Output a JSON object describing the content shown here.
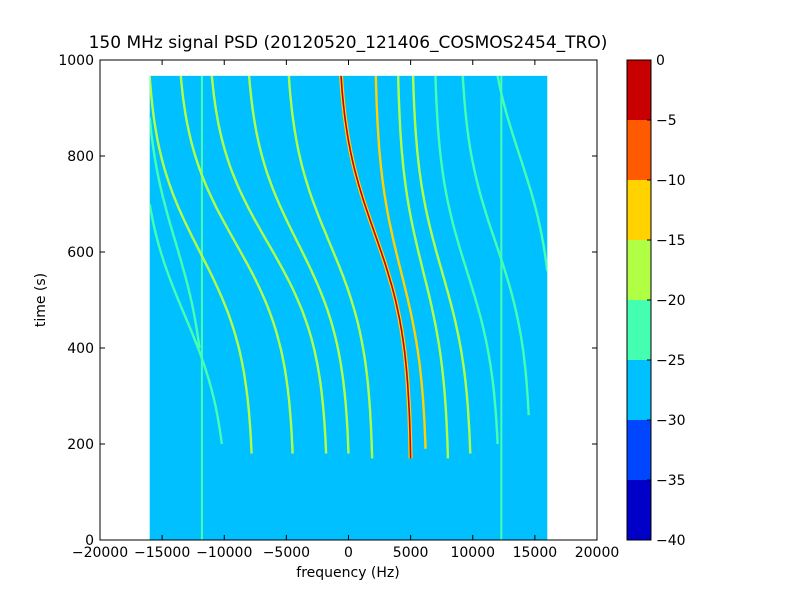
{
  "chart_data": {
    "type": "heatmap",
    "title": "150 MHz signal PSD (20120520_121406_COSMOS2454_TRO)",
    "xlabel": "frequency (Hz)",
    "ylabel": "time (s)",
    "xlim": [
      -20000,
      20000
    ],
    "ylim": [
      0,
      1000
    ],
    "xticks": [
      -20000,
      -15000,
      -10000,
      -5000,
      0,
      5000,
      10000,
      15000,
      20000
    ],
    "xtick_labels": [
      "−20000",
      "−15000",
      "−10000",
      "−5000",
      "0",
      "5000",
      "10000",
      "15000",
      "20000"
    ],
    "yticks": [
      0,
      200,
      400,
      600,
      800,
      1000
    ],
    "ytick_labels": [
      "0",
      "200",
      "400",
      "600",
      "800",
      "1000"
    ],
    "data_extent": {
      "x": [
        -16000,
        16000
      ],
      "y": [
        0,
        967
      ]
    },
    "background_level": -28,
    "colormap": "jet",
    "colorbar": {
      "levels": [
        -40,
        -35,
        -30,
        -25,
        -20,
        -15,
        -10,
        -5,
        0
      ],
      "tick_labels": [
        "−40",
        "−35",
        "−30",
        "−25",
        "−20",
        "−15",
        "−10",
        "−5",
        "0"
      ],
      "colors": [
        "#0000c8",
        "#0046ff",
        "#00c0ff",
        "#45ffb0",
        "#b0ff45",
        "#ffd200",
        "#ff5a00",
        "#c80000"
      ]
    },
    "vertical_lines": [
      {
        "x": -11800,
        "level": -24
      },
      {
        "x": 12300,
        "level": -24
      }
    ],
    "traces": [
      {
        "f_bottom": 5000,
        "f_top": -600,
        "t_start": 170,
        "t_end": 967,
        "t_mid": 640,
        "width": 2600,
        "level": -3
      },
      {
        "f_bottom": 6200,
        "f_top": 2200,
        "t_start": 190,
        "t_end": 967,
        "t_mid": 560,
        "width": 2400,
        "level": -14
      },
      {
        "f_bottom": 1900,
        "f_top": -4800,
        "t_start": 170,
        "t_end": 967,
        "t_mid": 620,
        "width": 2600,
        "level": -16
      },
      {
        "f_bottom": 8000,
        "f_top": 4000,
        "t_start": 170,
        "t_end": 967,
        "t_mid": 560,
        "width": 2400,
        "level": -17
      },
      {
        "f_bottom": 9800,
        "f_top": 5200,
        "t_start": 180,
        "t_end": 967,
        "t_mid": 560,
        "width": 2400,
        "level": -18
      },
      {
        "f_bottom": 0,
        "f_top": -8000,
        "t_start": 180,
        "t_end": 967,
        "t_mid": 620,
        "width": 2600,
        "level": -18
      },
      {
        "f_bottom": -1800,
        "f_top": -11000,
        "t_start": 180,
        "t_end": 967,
        "t_mid": 620,
        "width": 2600,
        "level": -19
      },
      {
        "f_bottom": -4500,
        "f_top": -13500,
        "t_start": 180,
        "t_end": 967,
        "t_mid": 620,
        "width": 2600,
        "level": -20
      },
      {
        "f_bottom": -7800,
        "f_top": -16000,
        "t_start": 180,
        "t_end": 967,
        "t_mid": 600,
        "width": 2600,
        "level": -20
      },
      {
        "f_bottom": -10200,
        "f_top": -16000,
        "t_start": 200,
        "t_end": 700,
        "t_mid": 470,
        "width": 2200,
        "level": -21
      },
      {
        "f_bottom": -12000,
        "f_top": -16000,
        "t_start": 400,
        "t_end": 880,
        "t_mid": 620,
        "width": 2000,
        "level": -21
      },
      {
        "f_bottom": 12000,
        "f_top": 7000,
        "t_start": 200,
        "t_end": 967,
        "t_mid": 560,
        "width": 2400,
        "level": -21
      },
      {
        "f_bottom": 14500,
        "f_top": 9200,
        "t_start": 260,
        "t_end": 967,
        "t_mid": 620,
        "width": 2400,
        "level": -22
      },
      {
        "f_bottom": 16000,
        "f_top": 12000,
        "t_start": 560,
        "t_end": 967,
        "t_mid": 800,
        "width": 2200,
        "level": -22
      }
    ]
  }
}
